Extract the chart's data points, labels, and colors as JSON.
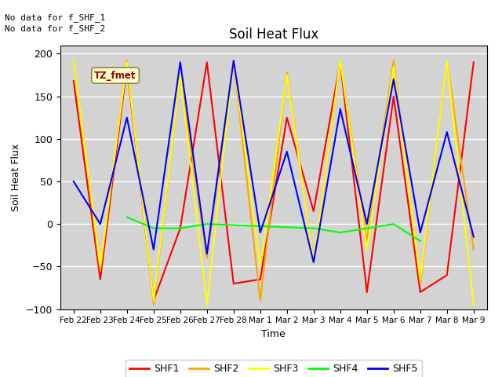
{
  "title": "Soil Heat Flux",
  "xlabel": "Time",
  "ylabel": "Soil Heat Flux",
  "text_top_left": [
    "No data for f_SHF_1",
    "No data for f_SHF_2"
  ],
  "annotation_box": "TZ_fmet",
  "ylim": [
    -100,
    210
  ],
  "yticks": [
    -100,
    -50,
    0,
    50,
    100,
    150,
    200
  ],
  "x_labels": [
    "Feb 22",
    "Feb 23",
    "Feb 24",
    "Feb 25",
    "Feb 26",
    "Feb 27",
    "Feb 28",
    "Mar 1",
    "Mar 2",
    "Mar 3",
    "Mar 4",
    "Mar 5",
    "Mar 6",
    "Mar 7",
    "Mar 8",
    "Mar 9"
  ],
  "bg_color": "#d3d3d3",
  "grid_color": "#ffffff",
  "series": {
    "SHF1": {
      "color": "red",
      "lw": 1.5,
      "x": [
        0,
        1,
        2,
        3,
        4,
        5,
        6,
        7,
        8,
        9,
        10,
        11,
        12,
        13,
        14,
        15
      ],
      "y": [
        168,
        -65,
        185,
        -90,
        -5,
        190,
        -70,
        -65,
        125,
        15,
        190,
        -80,
        150,
        -80,
        -60,
        190
      ]
    },
    "SHF2": {
      "color": "orange",
      "lw": 1.5,
      "x": [
        0,
        1,
        2,
        3,
        4,
        5,
        6,
        7,
        8,
        9,
        10,
        11,
        12,
        13,
        14,
        15
      ],
      "y": [
        192,
        -55,
        192,
        -95,
        175,
        -40,
        192,
        -90,
        178,
        -45,
        192,
        -20,
        192,
        -70,
        192,
        -30
      ]
    },
    "SHF3": {
      "color": "yellow",
      "lw": 1.5,
      "x": [
        0,
        1,
        2,
        3,
        4,
        5,
        6,
        7,
        8,
        9,
        10,
        11,
        12,
        13,
        14,
        15
      ],
      "y": [
        192,
        -50,
        190,
        -90,
        175,
        -95,
        192,
        -50,
        175,
        -45,
        192,
        -30,
        185,
        -65,
        192,
        -95
      ]
    },
    "SHF4": {
      "color": "lime",
      "lw": 1.5,
      "x": [
        2,
        3,
        4,
        5,
        9,
        10,
        11,
        12,
        13
      ],
      "y": [
        8,
        -5,
        -5,
        0,
        -5,
        -10,
        -5,
        0,
        -20
      ]
    },
    "SHF5": {
      "color": "blue",
      "lw": 1.5,
      "x": [
        0,
        1,
        2,
        3,
        4,
        5,
        6,
        7,
        8,
        9,
        10,
        11,
        12,
        13,
        14,
        15
      ],
      "y": [
        50,
        0,
        125,
        -30,
        190,
        -35,
        192,
        -10,
        85,
        -45,
        135,
        0,
        170,
        -10,
        108,
        -15
      ]
    }
  },
  "legend_entries": [
    "SHF1",
    "SHF2",
    "SHF3",
    "SHF4",
    "SHF5"
  ],
  "legend_colors": [
    "red",
    "orange",
    "yellow",
    "lime",
    "blue"
  ]
}
